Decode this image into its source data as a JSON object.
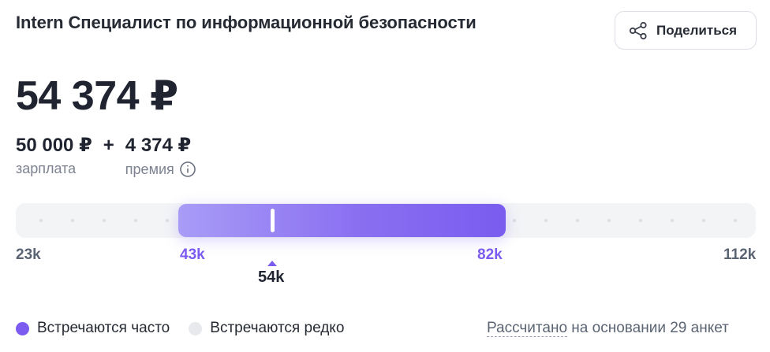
{
  "header": {
    "title": "Intern Специалист по информационной безопасности",
    "share_label": "Поделиться",
    "share_icon": "share-icon"
  },
  "salary": {
    "total": "54 374 ₽",
    "base_amount": "50 000 ₽",
    "base_caption": "зарплата",
    "plus": "+",
    "bonus_amount": "4 374 ₽",
    "bonus_caption": "премия",
    "info_icon": "info-icon"
  },
  "range": {
    "min_label": "23k",
    "low_label": "43k",
    "high_label": "82k",
    "max_label": "112k",
    "current_label": "54k",
    "min": 23000,
    "low": 43000,
    "high": 82000,
    "max": 112000,
    "current": 54374,
    "colors": {
      "range": "#7c5cf0",
      "track": "#f3f4f6"
    }
  },
  "legend": {
    "frequent_label": "Встречаются часто",
    "frequent_color": "#7c5cf0",
    "rare_label": "Встречаются редко",
    "rare_color": "#e8e9ec"
  },
  "footnote": {
    "link_text": "Рассчитано",
    "rest_text": " на основании 29 анкет"
  }
}
